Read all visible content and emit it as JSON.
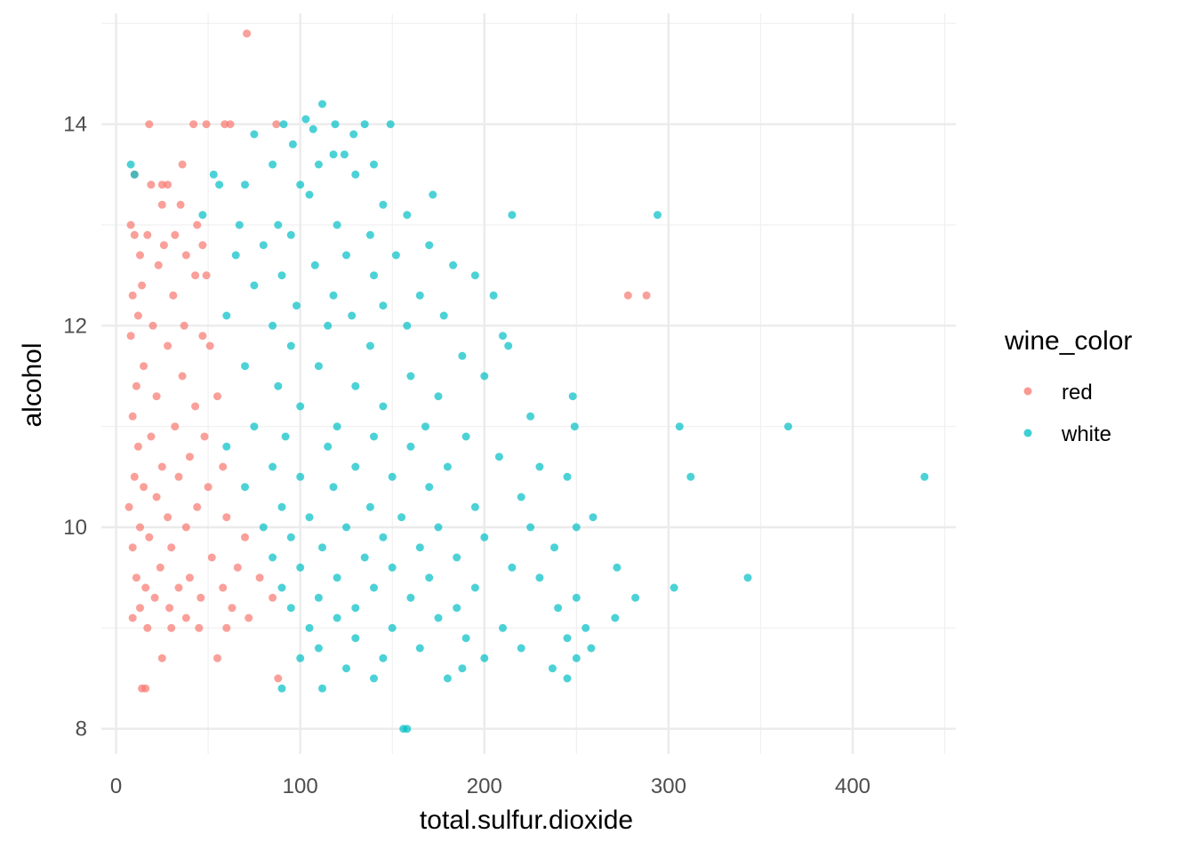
{
  "chart_data": {
    "type": "scatter",
    "xlabel": "total.sulfur.dioxide",
    "ylabel": "alcohol",
    "xlim": [
      -8,
      456
    ],
    "ylim": [
      7.75,
      15.1
    ],
    "x_ticks": [
      0,
      100,
      200,
      300,
      400
    ],
    "x_tick_labels": [
      "0",
      "100",
      "200",
      "300",
      "400"
    ],
    "y_ticks": [
      8,
      10,
      12,
      14
    ],
    "y_tick_labels": [
      "8",
      "10",
      "12",
      "14"
    ],
    "grid": true,
    "legend": {
      "title": "wine_color",
      "placement": "right"
    },
    "series": [
      {
        "name": "red",
        "color": "#F8766D",
        "points": [
          [
            71,
            14.9
          ],
          [
            18,
            14.0
          ],
          [
            42,
            14.0
          ],
          [
            49,
            14.0
          ],
          [
            59,
            14.0
          ],
          [
            62,
            14.0
          ],
          [
            87,
            14.0
          ],
          [
            36,
            13.6
          ],
          [
            10,
            13.5
          ],
          [
            19,
            13.4
          ],
          [
            25,
            13.4
          ],
          [
            28,
            13.4
          ],
          [
            25,
            13.2
          ],
          [
            35,
            13.2
          ],
          [
            8,
            13.0
          ],
          [
            44,
            13.0
          ],
          [
            10,
            12.9
          ],
          [
            17,
            12.9
          ],
          [
            26,
            12.8
          ],
          [
            32,
            12.9
          ],
          [
            47,
            12.8
          ],
          [
            13,
            12.7
          ],
          [
            38,
            12.7
          ],
          [
            23,
            12.6
          ],
          [
            43,
            12.5
          ],
          [
            14,
            12.4
          ],
          [
            49,
            12.5
          ],
          [
            31,
            12.3
          ],
          [
            9,
            12.3
          ],
          [
            278,
            12.3
          ],
          [
            288,
            12.3
          ],
          [
            12,
            12.1
          ],
          [
            20,
            12.0
          ],
          [
            37,
            12.0
          ],
          [
            47,
            11.9
          ],
          [
            8,
            11.9
          ],
          [
            28,
            11.8
          ],
          [
            51,
            11.8
          ],
          [
            15,
            11.6
          ],
          [
            36,
            11.5
          ],
          [
            11,
            11.4
          ],
          [
            22,
            11.3
          ],
          [
            55,
            11.3
          ],
          [
            43,
            11.2
          ],
          [
            9,
            11.1
          ],
          [
            32,
            11.0
          ],
          [
            19,
            10.9
          ],
          [
            48,
            10.9
          ],
          [
            12,
            10.8
          ],
          [
            40,
            10.7
          ],
          [
            25,
            10.6
          ],
          [
            58,
            10.6
          ],
          [
            10,
            10.5
          ],
          [
            34,
            10.5
          ],
          [
            15,
            10.4
          ],
          [
            50,
            10.4
          ],
          [
            22,
            10.3
          ],
          [
            7,
            10.2
          ],
          [
            44,
            10.2
          ],
          [
            28,
            10.1
          ],
          [
            60,
            10.1
          ],
          [
            13,
            10.0
          ],
          [
            38,
            10.0
          ],
          [
            18,
            9.9
          ],
          [
            70,
            9.9
          ],
          [
            9,
            9.8
          ],
          [
            30,
            9.8
          ],
          [
            52,
            9.7
          ],
          [
            24,
            9.6
          ],
          [
            66,
            9.6
          ],
          [
            11,
            9.5
          ],
          [
            40,
            9.5
          ],
          [
            78,
            9.5
          ],
          [
            16,
            9.4
          ],
          [
            34,
            9.4
          ],
          [
            58,
            9.4
          ],
          [
            21,
            9.3
          ],
          [
            46,
            9.3
          ],
          [
            85,
            9.3
          ],
          [
            13,
            9.2
          ],
          [
            29,
            9.2
          ],
          [
            63,
            9.2
          ],
          [
            9,
            9.1
          ],
          [
            38,
            9.1
          ],
          [
            72,
            9.1
          ],
          [
            17,
            9.0
          ],
          [
            30,
            9.0
          ],
          [
            45,
            9.0
          ],
          [
            60,
            9.0
          ],
          [
            25,
            8.7
          ],
          [
            55,
            8.7
          ],
          [
            14,
            8.4
          ],
          [
            16,
            8.4
          ],
          [
            88,
            8.5
          ]
        ]
      },
      {
        "name": "white",
        "color": "#00BFC4",
        "points": [
          [
            112,
            14.2
          ],
          [
            103,
            14.05
          ],
          [
            119,
            14.0
          ],
          [
            135,
            14.0
          ],
          [
            149,
            14.0
          ],
          [
            91,
            14.0
          ],
          [
            107,
            13.95
          ],
          [
            75,
            13.9
          ],
          [
            129,
            13.9
          ],
          [
            96,
            13.8
          ],
          [
            118,
            13.7
          ],
          [
            124,
            13.7
          ],
          [
            85,
            13.6
          ],
          [
            110,
            13.6
          ],
          [
            140,
            13.6
          ],
          [
            8,
            13.6
          ],
          [
            10,
            13.5
          ],
          [
            53,
            13.5
          ],
          [
            130,
            13.5
          ],
          [
            70,
            13.4
          ],
          [
            100,
            13.4
          ],
          [
            56,
            13.4
          ],
          [
            172,
            13.3
          ],
          [
            105,
            13.3
          ],
          [
            145,
            13.2
          ],
          [
            215,
            13.1
          ],
          [
            294,
            13.1
          ],
          [
            47,
            13.1
          ],
          [
            88,
            13.0
          ],
          [
            120,
            13.0
          ],
          [
            158,
            13.1
          ],
          [
            67,
            13.0
          ],
          [
            138,
            12.9
          ],
          [
            95,
            12.9
          ],
          [
            170,
            12.8
          ],
          [
            80,
            12.8
          ],
          [
            125,
            12.7
          ],
          [
            152,
            12.7
          ],
          [
            65,
            12.7
          ],
          [
            108,
            12.6
          ],
          [
            183,
            12.6
          ],
          [
            90,
            12.5
          ],
          [
            140,
            12.5
          ],
          [
            195,
            12.5
          ],
          [
            75,
            12.4
          ],
          [
            118,
            12.3
          ],
          [
            165,
            12.3
          ],
          [
            205,
            12.3
          ],
          [
            98,
            12.2
          ],
          [
            145,
            12.2
          ],
          [
            60,
            12.1
          ],
          [
            128,
            12.1
          ],
          [
            178,
            12.1
          ],
          [
            85,
            12.0
          ],
          [
            115,
            12.0
          ],
          [
            158,
            12.0
          ],
          [
            210,
            11.9
          ],
          [
            95,
            11.8
          ],
          [
            138,
            11.8
          ],
          [
            188,
            11.7
          ],
          [
            213,
            11.8
          ],
          [
            70,
            11.6
          ],
          [
            110,
            11.6
          ],
          [
            160,
            11.5
          ],
          [
            200,
            11.5
          ],
          [
            88,
            11.4
          ],
          [
            130,
            11.4
          ],
          [
            175,
            11.3
          ],
          [
            248,
            11.3
          ],
          [
            100,
            11.2
          ],
          [
            145,
            11.2
          ],
          [
            225,
            11.1
          ],
          [
            75,
            11.0
          ],
          [
            120,
            11.0
          ],
          [
            168,
            11.0
          ],
          [
            249,
            11.0
          ],
          [
            306,
            11.0
          ],
          [
            365,
            11.0
          ],
          [
            92,
            10.9
          ],
          [
            140,
            10.9
          ],
          [
            190,
            10.9
          ],
          [
            60,
            10.8
          ],
          [
            115,
            10.8
          ],
          [
            160,
            10.8
          ],
          [
            208,
            10.7
          ],
          [
            85,
            10.6
          ],
          [
            130,
            10.6
          ],
          [
            180,
            10.6
          ],
          [
            230,
            10.6
          ],
          [
            100,
            10.5
          ],
          [
            150,
            10.5
          ],
          [
            245,
            10.5
          ],
          [
            312,
            10.5
          ],
          [
            439,
            10.5
          ],
          [
            70,
            10.4
          ],
          [
            118,
            10.4
          ],
          [
            170,
            10.4
          ],
          [
            220,
            10.3
          ],
          [
            90,
            10.2
          ],
          [
            138,
            10.2
          ],
          [
            195,
            10.2
          ],
          [
            105,
            10.1
          ],
          [
            155,
            10.1
          ],
          [
            259,
            10.1
          ],
          [
            80,
            10.0
          ],
          [
            125,
            10.0
          ],
          [
            175,
            10.0
          ],
          [
            225,
            10.0
          ],
          [
            250,
            10.0
          ],
          [
            95,
            9.9
          ],
          [
            145,
            9.9
          ],
          [
            200,
            9.9
          ],
          [
            112,
            9.8
          ],
          [
            165,
            9.8
          ],
          [
            238,
            9.8
          ],
          [
            85,
            9.7
          ],
          [
            135,
            9.7
          ],
          [
            185,
            9.7
          ],
          [
            272,
            9.6
          ],
          [
            100,
            9.6
          ],
          [
            150,
            9.6
          ],
          [
            215,
            9.6
          ],
          [
            343,
            9.5
          ],
          [
            120,
            9.5
          ],
          [
            170,
            9.5
          ],
          [
            230,
            9.5
          ],
          [
            90,
            9.4
          ],
          [
            140,
            9.4
          ],
          [
            195,
            9.4
          ],
          [
            303,
            9.4
          ],
          [
            110,
            9.3
          ],
          [
            160,
            9.3
          ],
          [
            250,
            9.3
          ],
          [
            282,
            9.3
          ],
          [
            95,
            9.2
          ],
          [
            130,
            9.2
          ],
          [
            185,
            9.2
          ],
          [
            240,
            9.2
          ],
          [
            120,
            9.1
          ],
          [
            175,
            9.1
          ],
          [
            271,
            9.1
          ],
          [
            105,
            9.0
          ],
          [
            150,
            9.0
          ],
          [
            210,
            9.0
          ],
          [
            255,
            9.0
          ],
          [
            130,
            8.9
          ],
          [
            190,
            8.9
          ],
          [
            245,
            8.9
          ],
          [
            110,
            8.8
          ],
          [
            165,
            8.8
          ],
          [
            220,
            8.8
          ],
          [
            258,
            8.8
          ],
          [
            100,
            8.7
          ],
          [
            145,
            8.7
          ],
          [
            200,
            8.7
          ],
          [
            250,
            8.7
          ],
          [
            125,
            8.6
          ],
          [
            188,
            8.6
          ],
          [
            237,
            8.6
          ],
          [
            140,
            8.5
          ],
          [
            180,
            8.5
          ],
          [
            245,
            8.5
          ],
          [
            90,
            8.4
          ],
          [
            112,
            8.4
          ],
          [
            156,
            8.0
          ],
          [
            158,
            8.0
          ]
        ]
      }
    ]
  }
}
